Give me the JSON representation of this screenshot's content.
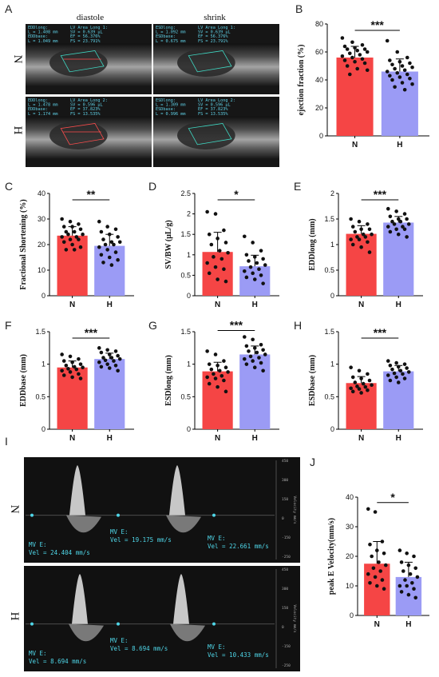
{
  "panels": {
    "A": {
      "label": "A",
      "col_titles": [
        "diastole",
        "shrink"
      ],
      "row_labels": [
        "N",
        "H"
      ],
      "overlays": [
        [
          "EDDlong:",
          "L = 1.408 mm",
          "EDDbase:",
          "L = 1.049 mm",
          "LV Area Long 1:",
          "SV = 0.639 μL",
          "EF = 56.376%",
          "FS = 23.791%"
        ],
        [
          "ESDlong:",
          "L = 1.092 mm",
          "ESDbase:",
          "L = 0.675 mm",
          "LV Area Long 1:",
          "SV = 0.639 μL",
          "EF = 56.376%",
          "FS = 23.791%"
        ],
        [
          "EDDlong:",
          "L = 1.478 mm",
          "EDDbase:",
          "L = 1.174 mm",
          "LV Area Long 2:",
          "SV = 0.596 μL",
          "EF = 37.823%",
          "FS = 13.535%"
        ],
        [
          "ESDlong:",
          "L = 1.309 mm",
          "ESDbase:",
          "L = 0.996 mm",
          "LV Area Long 2:",
          "SV = 0.596 μL",
          "EF = 37.823%",
          "FS = 13.535%"
        ]
      ]
    },
    "I": {
      "label": "I",
      "row_labels": [
        "N",
        "H"
      ],
      "scale_ticks": [
        "450",
        "300",
        "150",
        "0",
        "-150",
        "-250"
      ],
      "scale_unit": "Velocity mm/s",
      "readouts_N": [
        {
          "line1": "MV E:",
          "line2": "Vel = 24.404 mm/s"
        },
        {
          "line1": "MV E:",
          "line2": "Vel = 19.175 mm/s"
        },
        {
          "line1": "MV E:",
          "line2": "Vel = 22.661 mm/s"
        }
      ],
      "readouts_H": [
        {
          "line1": "MV E:",
          "line2": "Vel = 8.694 mm/s"
        },
        {
          "line1": "MV E:",
          "line2": "Vel = 8.694 mm/s"
        },
        {
          "line1": "MV E:",
          "line2": "Vel = 10.433 mm/s"
        }
      ]
    }
  },
  "colors": {
    "N": "#f54545",
    "H": "#9b9bf5",
    "points": "#111111",
    "us_text": "#5fd0e6"
  },
  "chart_data": [
    {
      "id": "B",
      "type": "bar",
      "categories": [
        "N",
        "H"
      ],
      "ylabel": "ejection fraction (%)",
      "ylim": [
        0,
        80
      ],
      "yticks": [
        0,
        20,
        40,
        60,
        80
      ],
      "significance": "***",
      "series": [
        {
          "values": [
            56,
            46
          ],
          "sd": [
            8,
            9
          ]
        }
      ],
      "points": [
        [
          70,
          67,
          65,
          64,
          63,
          62,
          62,
          61,
          60,
          59,
          58,
          57,
          56,
          55,
          54,
          53,
          52,
          50,
          48,
          47,
          44
        ],
        [
          68,
          60,
          56,
          54,
          53,
          52,
          51,
          50,
          49,
          48,
          47,
          46,
          45,
          44,
          43,
          42,
          41,
          40,
          38,
          37,
          35,
          33
        ]
      ]
    },
    {
      "id": "C",
      "type": "bar",
      "categories": [
        "N",
        "H"
      ],
      "ylabel": "Fractional Shortening (%)",
      "ylim": [
        0,
        40
      ],
      "yticks": [
        0,
        10,
        20,
        30,
        40
      ],
      "significance": "**",
      "series": [
        {
          "values": [
            23.5,
            19.5
          ],
          "sd": [
            3.5,
            4.5
          ]
        }
      ],
      "points": [
        [
          30,
          29,
          28,
          27,
          27,
          26,
          25,
          25,
          24,
          24,
          23,
          23,
          22,
          22,
          21,
          20,
          19,
          18,
          18
        ],
        [
          29,
          27,
          26,
          25,
          24,
          23,
          22,
          21,
          21,
          20,
          20,
          19,
          18,
          17,
          16,
          15,
          14,
          13,
          12
        ]
      ]
    },
    {
      "id": "D",
      "type": "bar",
      "categories": [
        "N",
        "H"
      ],
      "ylabel": "SV/BW (μL/g)",
      "ylim": [
        0,
        2.5
      ],
      "yticks": [
        0,
        0.5,
        1.0,
        1.5,
        2.0,
        2.5
      ],
      "significance": "*",
      "series": [
        {
          "values": [
            1.07,
            0.72
          ],
          "sd": [
            0.48,
            0.27
          ]
        }
      ],
      "points": [
        [
          2.05,
          2.0,
          1.6,
          1.5,
          1.4,
          1.3,
          1.25,
          1.1,
          1.05,
          0.95,
          0.9,
          0.8,
          0.7,
          0.65,
          0.55,
          0.4,
          0.35
        ],
        [
          1.45,
          1.3,
          1.1,
          1.0,
          0.95,
          0.9,
          0.85,
          0.8,
          0.75,
          0.7,
          0.65,
          0.6,
          0.55,
          0.5,
          0.45,
          0.4,
          0.3
        ]
      ]
    },
    {
      "id": "E",
      "type": "bar",
      "categories": [
        "N",
        "H"
      ],
      "ylabel": "EDDlong (mm)",
      "ylim": [
        0,
        2.0
      ],
      "yticks": [
        0,
        0.5,
        1.0,
        1.5,
        2.0
      ],
      "significance": "***",
      "series": [
        {
          "values": [
            1.21,
            1.43
          ],
          "sd": [
            0.16,
            0.12
          ]
        }
      ],
      "points": [
        [
          1.5,
          1.45,
          1.4,
          1.35,
          1.3,
          1.3,
          1.25,
          1.2,
          1.2,
          1.15,
          1.15,
          1.1,
          1.1,
          1.05,
          1.0,
          0.95,
          0.85
        ],
        [
          1.7,
          1.65,
          1.6,
          1.55,
          1.5,
          1.5,
          1.45,
          1.45,
          1.4,
          1.4,
          1.35,
          1.35,
          1.3,
          1.3,
          1.25,
          1.2,
          1.15
        ]
      ]
    },
    {
      "id": "F",
      "type": "bar",
      "categories": [
        "N",
        "H"
      ],
      "ylabel": "EDDbase (mm)",
      "ylim": [
        0,
        1.5
      ],
      "yticks": [
        0,
        0.5,
        1.0,
        1.5
      ],
      "significance": "***",
      "series": [
        {
          "values": [
            0.95,
            1.08
          ],
          "sd": [
            0.1,
            0.09
          ]
        }
      ],
      "points": [
        [
          1.15,
          1.12,
          1.08,
          1.05,
          1.03,
          1.0,
          0.98,
          0.96,
          0.95,
          0.93,
          0.92,
          0.9,
          0.88,
          0.85,
          0.83,
          0.8,
          0.78
        ],
        [
          1.25,
          1.22,
          1.2,
          1.18,
          1.15,
          1.13,
          1.1,
          1.1,
          1.08,
          1.06,
          1.05,
          1.03,
          1.0,
          0.98,
          0.96,
          0.94,
          0.9
        ]
      ]
    },
    {
      "id": "G",
      "type": "bar",
      "categories": [
        "N",
        "H"
      ],
      "ylabel": "ESDlong (mm)",
      "ylim": [
        0,
        1.5
      ],
      "yticks": [
        0,
        0.5,
        1.0,
        1.5
      ],
      "significance": "***",
      "series": [
        {
          "values": [
            0.89,
            1.15
          ],
          "sd": [
            0.14,
            0.13
          ]
        }
      ],
      "points": [
        [
          1.2,
          1.15,
          1.05,
          1.0,
          0.98,
          0.95,
          0.92,
          0.9,
          0.88,
          0.85,
          0.82,
          0.8,
          0.78,
          0.75,
          0.7,
          0.65,
          0.58
        ],
        [
          1.42,
          1.38,
          1.3,
          1.28,
          1.25,
          1.22,
          1.2,
          1.18,
          1.15,
          1.12,
          1.1,
          1.08,
          1.05,
          1.02,
          1.0,
          0.95,
          0.9
        ]
      ]
    },
    {
      "id": "H",
      "type": "bar",
      "categories": [
        "N",
        "H"
      ],
      "ylabel": "ESDbase (mm)",
      "ylim": [
        0,
        1.5
      ],
      "yticks": [
        0,
        0.5,
        1.0,
        1.5
      ],
      "significance": "***",
      "series": [
        {
          "values": [
            0.71,
            0.89
          ],
          "sd": [
            0.1,
            0.09
          ]
        }
      ],
      "points": [
        [
          0.95,
          0.9,
          0.85,
          0.8,
          0.78,
          0.75,
          0.72,
          0.7,
          0.68,
          0.66,
          0.65,
          0.63,
          0.62,
          0.6,
          0.58,
          0.56
        ],
        [
          1.05,
          1.02,
          1.0,
          0.98,
          0.96,
          0.94,
          0.92,
          0.9,
          0.88,
          0.86,
          0.85,
          0.83,
          0.8,
          0.78,
          0.75,
          0.72
        ]
      ]
    },
    {
      "id": "J",
      "type": "bar",
      "categories": [
        "N",
        "H"
      ],
      "ylabel": "peak E Velocity(mm/s)",
      "ylim": [
        0,
        40
      ],
      "yticks": [
        0,
        10,
        20,
        30,
        40
      ],
      "significance": "*",
      "series": [
        {
          "values": [
            17.5,
            13
          ],
          "sd": [
            7.5,
            5
          ]
        }
      ],
      "points": [
        [
          36,
          35,
          25,
          24,
          22,
          21,
          20,
          18,
          17,
          16,
          15,
          14,
          13,
          12,
          11,
          10,
          9
        ],
        [
          22,
          21,
          20,
          18,
          17,
          16,
          15,
          14,
          13,
          12,
          11,
          10,
          10,
          9,
          8,
          7,
          6
        ]
      ]
    }
  ]
}
